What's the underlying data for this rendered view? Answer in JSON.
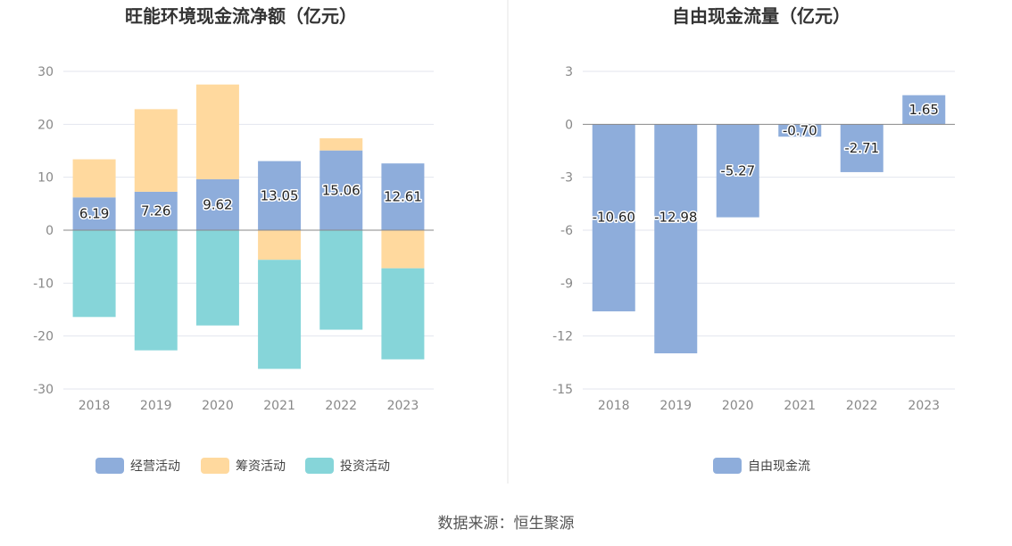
{
  "source_text": "数据来源：恒生聚源",
  "colors": {
    "operating": "#8eaddb",
    "financing": "#ffd99e",
    "investing": "#86d5d9",
    "free_cash_flow": "#8eaddb"
  },
  "chart_data": [
    {
      "type": "bar",
      "stacked": true,
      "title": "旺能环境现金流净额（亿元）",
      "categories": [
        "2018",
        "2019",
        "2020",
        "2021",
        "2022",
        "2023"
      ],
      "ylim": [
        -30,
        30
      ],
      "yticks": [
        30,
        20,
        10,
        0,
        -10,
        -20,
        -30
      ],
      "series": [
        {
          "name": "经营活动",
          "values": [
            6.19,
            7.26,
            9.62,
            13.05,
            15.06,
            12.61
          ],
          "labels": [
            "6.19",
            "7.26",
            "9.62",
            "13.05",
            "15.06",
            "12.61"
          ]
        },
        {
          "name": "筹资活动",
          "values": [
            7.2,
            15.6,
            17.9,
            -5.6,
            2.3,
            -7.2
          ]
        },
        {
          "name": "投资活动",
          "values": [
            -16.4,
            -22.7,
            -18.0,
            -20.6,
            -18.8,
            -17.2
          ]
        }
      ],
      "legend": "bottom"
    },
    {
      "type": "bar",
      "title": "自由现金流量（亿元）",
      "categories": [
        "2018",
        "2019",
        "2020",
        "2021",
        "2022",
        "2023"
      ],
      "ylim": [
        -15,
        3
      ],
      "yticks": [
        3,
        0,
        -3,
        -6,
        -9,
        -12,
        -15
      ],
      "series": [
        {
          "name": "自由现金流",
          "values": [
            -10.6,
            -12.98,
            -5.27,
            -0.7,
            -2.71,
            1.65
          ],
          "labels": [
            "-10.60",
            "-12.98",
            "-5.27",
            "-0.70",
            "-2.71",
            "1.65"
          ]
        }
      ],
      "legend": "bottom"
    }
  ]
}
